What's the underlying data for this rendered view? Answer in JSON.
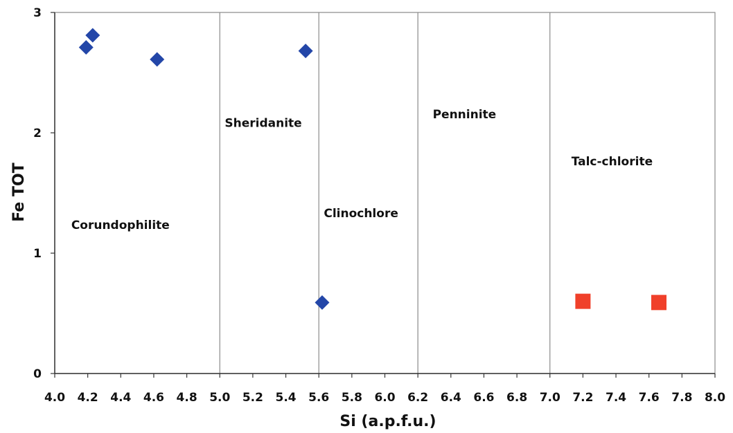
{
  "chart_data": {
    "type": "scatter",
    "xlabel": "Si (a.p.f.u.)",
    "ylabel": "Fe TOT",
    "xlim": [
      4.0,
      8.0
    ],
    "ylim": [
      0,
      3
    ],
    "x_ticks": [
      "4.0",
      "4.2",
      "4.4",
      "4.6",
      "4.8",
      "5.0",
      "5.2",
      "5.4",
      "5.6",
      "5.8",
      "6.0",
      "6.2",
      "6.4",
      "6.6",
      "6.8",
      "7.0",
      "7.2",
      "7.4",
      "7.6",
      "7.8",
      "8.0"
    ],
    "y_ticks": [
      "0",
      "1",
      "2",
      "3"
    ],
    "boundaries": [
      5.0,
      5.6,
      6.2,
      7.0
    ],
    "regions": [
      {
        "label": "Corundophilite",
        "x": 4.1,
        "y": 1.2
      },
      {
        "label": "Sheridanite",
        "x": 5.03,
        "y": 2.05
      },
      {
        "label": "Clinochlore",
        "x": 5.63,
        "y": 1.3
      },
      {
        "label": "Penninite",
        "x": 6.29,
        "y": 2.12
      },
      {
        "label": "Talc-chlorite",
        "x": 7.13,
        "y": 1.73
      }
    ],
    "grid": false,
    "series": [
      {
        "marker": "diamond",
        "color": "#2346a8",
        "points": [
          {
            "x": 4.19,
            "y": 2.71
          },
          {
            "x": 4.23,
            "y": 2.81
          },
          {
            "x": 4.62,
            "y": 2.61
          },
          {
            "x": 5.52,
            "y": 2.68
          },
          {
            "x": 5.62,
            "y": 0.59
          }
        ]
      },
      {
        "marker": "square",
        "color": "#f0402a",
        "points": [
          {
            "x": 7.2,
            "y": 0.6
          },
          {
            "x": 7.66,
            "y": 0.59
          }
        ]
      }
    ]
  }
}
